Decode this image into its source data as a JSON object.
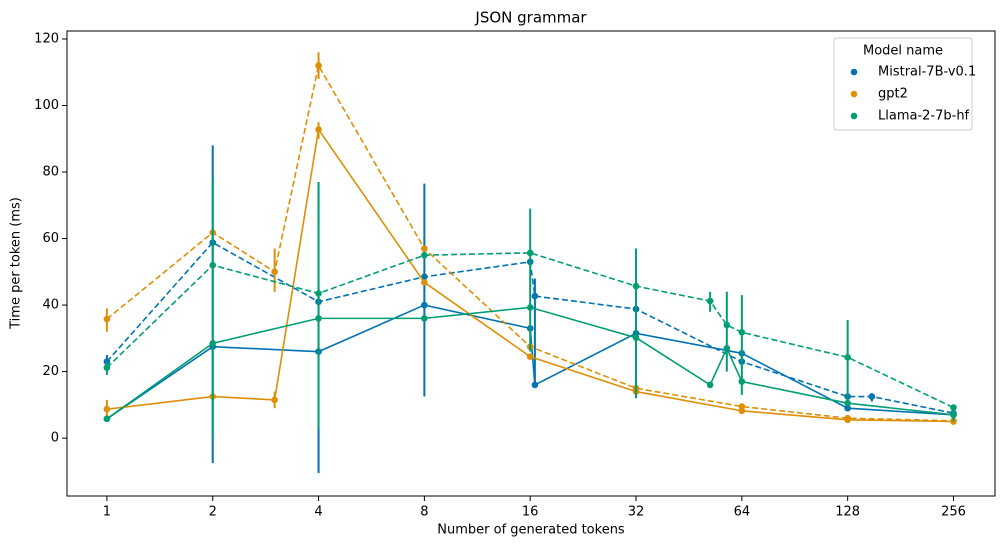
{
  "chart_data": {
    "type": "line",
    "title": "JSON grammar",
    "x_label": "Number of generated tokens",
    "y_label": "Time per token (ms)",
    "x_scale": "log2",
    "xlim": [
      0.77,
      336
    ],
    "xticks": [
      1,
      2,
      4,
      8,
      16,
      32,
      64,
      128,
      256
    ],
    "ylim": [
      -17.4,
      122.4
    ],
    "yticks": [
      0,
      20,
      40,
      60,
      80,
      100,
      120
    ],
    "grid": false,
    "legend_title": "Model name",
    "legend_position": "upper right",
    "series": [
      {
        "name": "Mistral-7B-v0.1",
        "color": "#0173b2",
        "solid": {
          "x": [
            1,
            2,
            4,
            8,
            16,
            16.5,
            32,
            64,
            128,
            256
          ],
          "values": [
            5.8,
            27.5,
            26,
            40,
            33,
            16,
            31.5,
            25.5,
            9,
            7
          ]
        },
        "dashed": {
          "x": [
            1,
            2,
            4,
            8,
            16,
            16.5,
            32,
            64,
            128,
            150,
            256
          ],
          "values": [
            23,
            58.8,
            41,
            48.5,
            53,
            42.7,
            38.8,
            23,
            12.5,
            12.5,
            7.5
          ]
        },
        "errorbars": {
          "x": [
            1,
            2,
            4,
            8,
            16.5,
            32,
            64,
            128,
            150
          ],
          "low": [
            21,
            -7.5,
            -10.5,
            12.5,
            15.5,
            15,
            21,
            8,
            11
          ],
          "high": [
            25,
            88,
            77,
            76.5,
            48,
            40,
            26,
            13,
            13.5
          ]
        }
      },
      {
        "name": "gpt2",
        "color": "#de8f05",
        "solid": {
          "x": [
            1,
            2,
            3,
            4,
            8,
            16,
            32,
            64,
            128,
            256
          ],
          "values": [
            8.7,
            12.5,
            11.5,
            92.8,
            46.8,
            24.5,
            14,
            8.2,
            5.5,
            5
          ]
        },
        "dashed": {
          "x": [
            1,
            2,
            3,
            4,
            8,
            16,
            32,
            64,
            128,
            256
          ],
          "values": [
            35.8,
            61.8,
            50,
            112,
            57,
            27.5,
            15,
            9.5,
            6,
            5.2
          ]
        },
        "errorbars": {
          "x": [
            1,
            1,
            3,
            3,
            4,
            4,
            256
          ],
          "low": [
            32,
            6,
            44,
            9,
            108,
            90,
            4
          ],
          "high": [
            39,
            11.5,
            57,
            14,
            116,
            95,
            6
          ]
        }
      },
      {
        "name": "Llama-2-7b-hf",
        "color": "#029e73",
        "solid": {
          "x": [
            1,
            2,
            4,
            8,
            16,
            32,
            52,
            58,
            64,
            128,
            256
          ],
          "values": [
            5.8,
            28.5,
            36,
            36,
            39.3,
            30.2,
            16,
            27,
            17,
            10.5,
            7
          ]
        },
        "dashed": {
          "x": [
            1,
            2,
            4,
            8,
            16,
            32,
            52,
            58,
            64,
            128,
            256
          ],
          "values": [
            21.2,
            52,
            43.5,
            55,
            55.7,
            45.7,
            41.2,
            34,
            31.8,
            24.3,
            9.2
          ]
        },
        "errorbars": {
          "x": [
            1,
            2,
            4,
            16,
            32,
            52,
            58,
            64,
            128,
            256
          ],
          "low": [
            19,
            0,
            3,
            26,
            12,
            38,
            20,
            13,
            10,
            5
          ],
          "high": [
            23,
            78,
            77,
            69,
            57,
            44,
            44,
            43,
            35.5,
            10
          ]
        }
      }
    ]
  }
}
